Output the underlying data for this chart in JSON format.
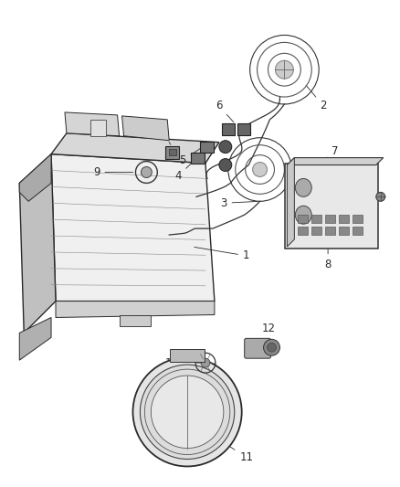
{
  "background_color": "#ffffff",
  "fig_width": 4.38,
  "fig_height": 5.33,
  "dpi": 100,
  "line_color": "#2a2a2a",
  "label_color": "#2a2a2a",
  "font_size": 8.5
}
